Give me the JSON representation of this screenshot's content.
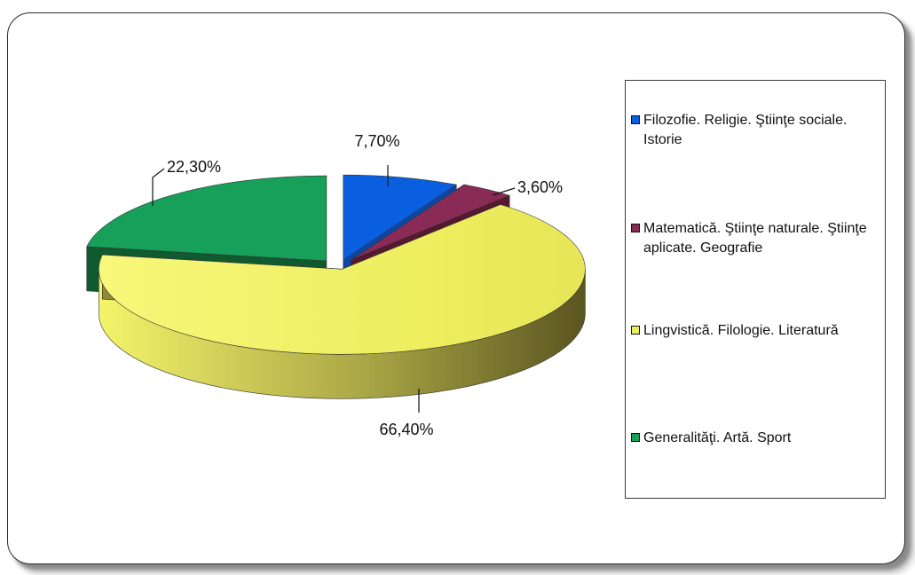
{
  "chart_data": {
    "type": "pie",
    "categories": [
      "Filozofie. Religie. Ştiinţe sociale. Istorie",
      "Matematică. Ştiinţe naturale. Ştiinţe aplicate. Geografie",
      "Lingvistică. Filologie. Literatură",
      "Generalităţi. Artă. Sport"
    ],
    "values": [
      7.7,
      3.6,
      66.4,
      22.3
    ],
    "data_labels": [
      "7,70%",
      "3,60%",
      "66,40%",
      "22,30%"
    ],
    "colors": [
      "#0a5fe0",
      "#8a2a56",
      "#eded5e",
      "#17a05a"
    ],
    "title": "",
    "legend_position": "right",
    "style": "3d-exploded"
  }
}
